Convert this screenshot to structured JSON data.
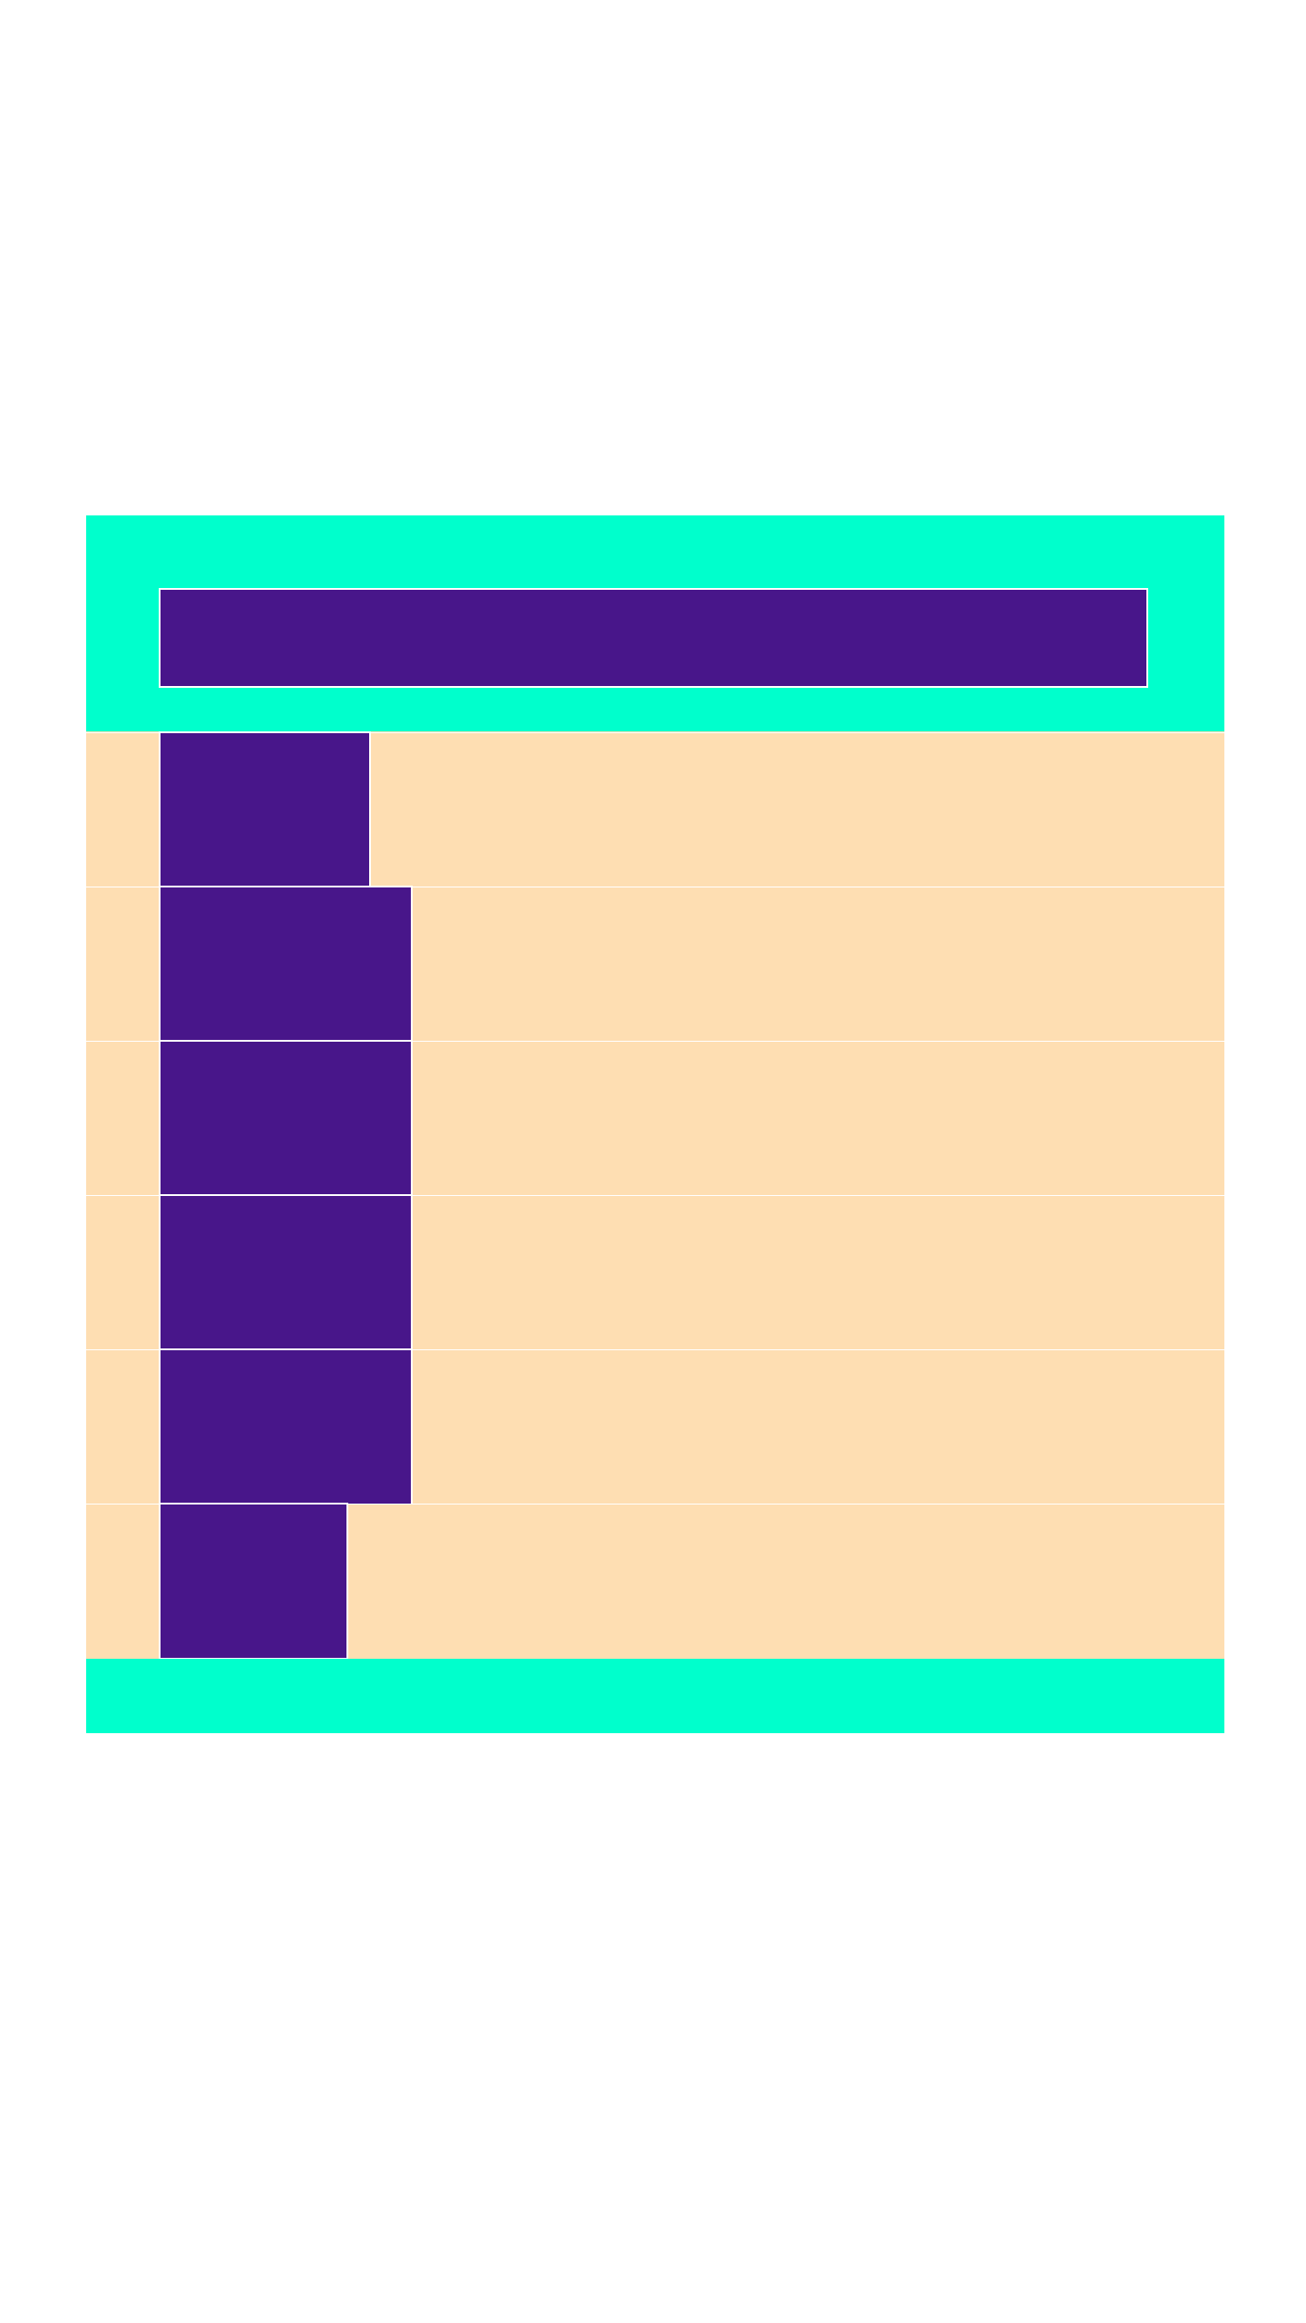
{
  "colors": {
    "accent": "#00ffcc",
    "bar": "#48168a",
    "row_background": "#fedeb2",
    "divider": "#ffffff"
  },
  "header": {
    "title": ""
  },
  "rows": [
    {
      "label": "",
      "fill": 0.196
    },
    {
      "label": "",
      "fill": 0.235
    },
    {
      "label": "",
      "fill": 0.235
    },
    {
      "label": "",
      "fill": 0.235
    },
    {
      "label": "",
      "fill": 0.235
    },
    {
      "label": "",
      "fill": 0.175
    }
  ],
  "footer": {
    "text": ""
  }
}
